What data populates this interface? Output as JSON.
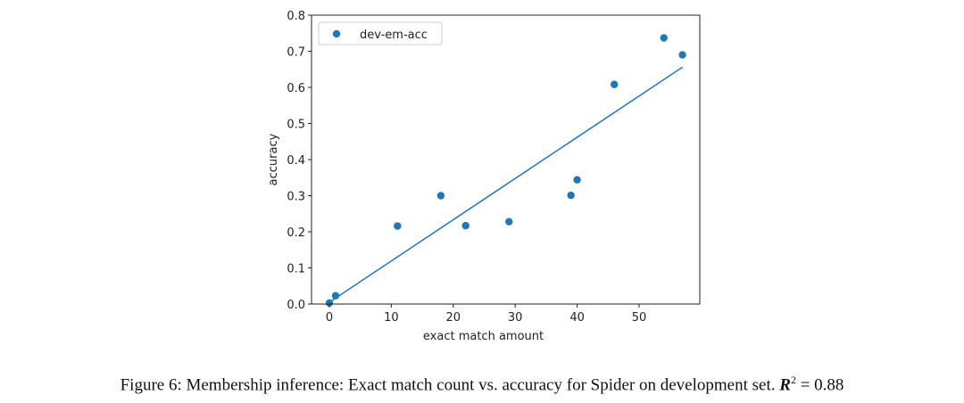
{
  "chart_data": {
    "type": "scatter",
    "xlabel": "exact match amount",
    "ylabel": "accuracy",
    "xlim": [
      -2.88,
      59.8
    ],
    "ylim": [
      0,
      0.8
    ],
    "xticks": [
      0,
      10,
      20,
      30,
      40,
      50
    ],
    "yticks": [
      0.0,
      0.1,
      0.2,
      0.3,
      0.4,
      0.5,
      0.6,
      0.7,
      0.8
    ],
    "grid": false,
    "legend": {
      "position": "top-left",
      "entries": [
        "dev-em-acc"
      ]
    },
    "series": [
      {
        "name": "dev-em-acc",
        "color": "#1f77b4",
        "x": [
          0,
          1,
          11,
          18,
          22,
          29,
          39,
          40,
          46,
          54,
          57
        ],
        "y": [
          0.003,
          0.023,
          0.216,
          0.3,
          0.217,
          0.228,
          0.301,
          0.344,
          0.608,
          0.737,
          0.69
        ]
      }
    ],
    "fit_line": {
      "color": "#1f77b4",
      "x": [
        0,
        57
      ],
      "y": [
        0.005,
        0.656
      ]
    }
  },
  "caption": {
    "text": "Figure 6: Membership inference: Exact match count vs. accuracy for Spider on development set. ",
    "r2_label": "R",
    "r2_exp": "2",
    "r2_value": " = 0.88"
  }
}
